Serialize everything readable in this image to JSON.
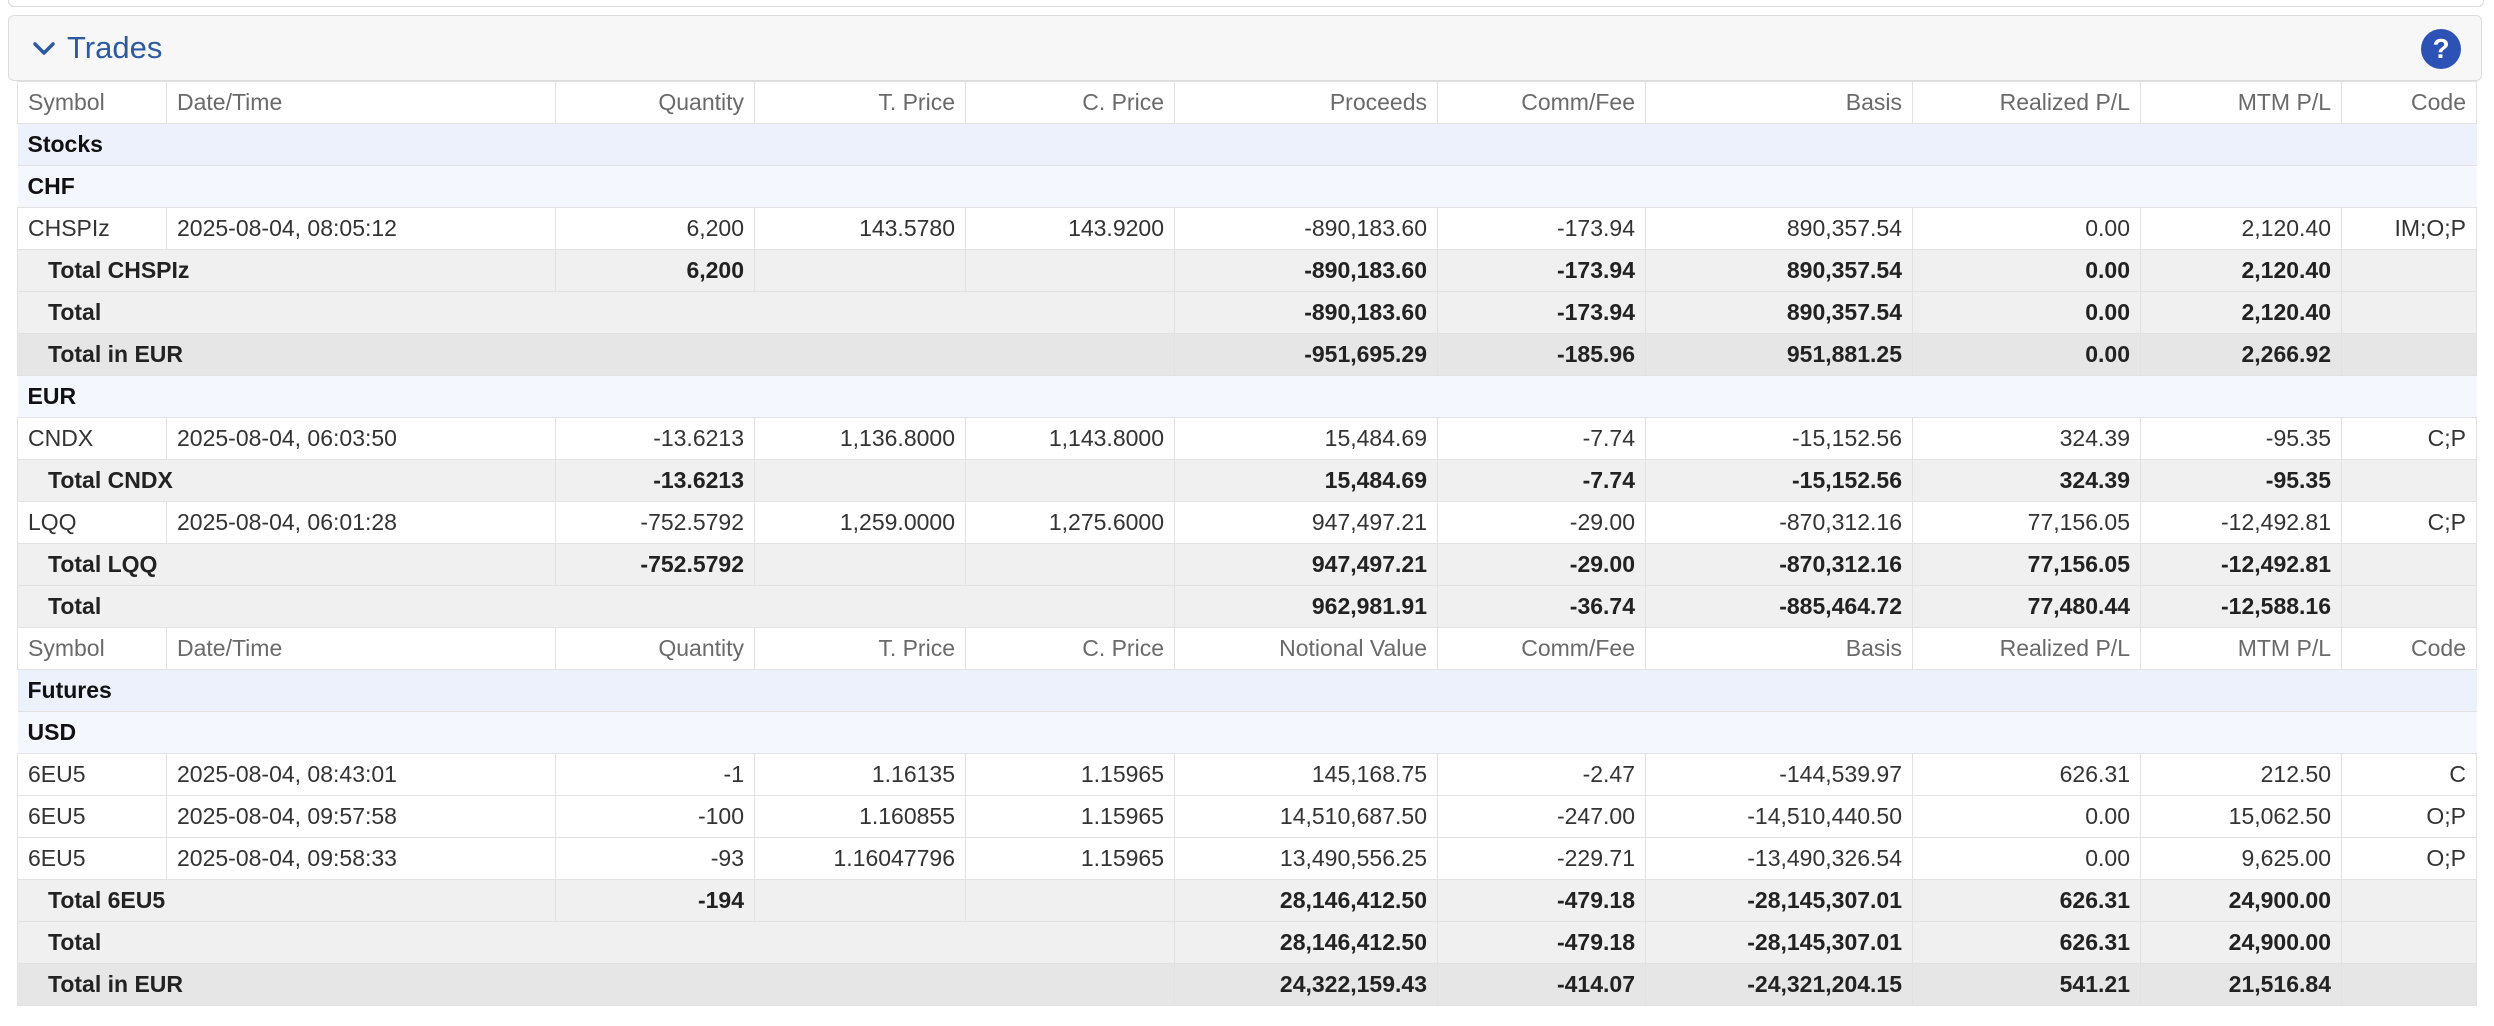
{
  "panel": {
    "title": "Trades",
    "collapse_icon": "chevron-down-icon",
    "help_label": "?",
    "accent": "#2c5aa0"
  },
  "headers": {
    "stocks": [
      "Symbol",
      "Date/Time",
      "Quantity",
      "T. Price",
      "C. Price",
      "Proceeds",
      "Comm/Fee",
      "Basis",
      "Realized P/L",
      "MTM P/L",
      "Code"
    ],
    "futures": [
      "Symbol",
      "Date/Time",
      "Quantity",
      "T. Price",
      "C. Price",
      "Notional Value",
      "Comm/Fee",
      "Basis",
      "Realized P/L",
      "MTM P/L",
      "Code"
    ]
  },
  "stocks": {
    "label": "Stocks",
    "chf": {
      "label": "CHF",
      "rows": [
        {
          "symbol": "CHSPIz",
          "datetime": "2025-08-04, 08:05:12",
          "qty": "6,200",
          "tprice": "143.5780",
          "cprice": "143.9200",
          "proceeds": "-890,183.60",
          "comm": "-173.94",
          "basis": "890,357.54",
          "realized": "0.00",
          "mtm": "2,120.40",
          "code": "IM;O;P"
        }
      ],
      "sym_total": {
        "label": "Total CHSPIz",
        "qty": "6,200",
        "proceeds": "-890,183.60",
        "comm": "-173.94",
        "basis": "890,357.54",
        "realized": "0.00",
        "mtm": "2,120.40"
      },
      "total": {
        "label": "Total",
        "proceeds": "-890,183.60",
        "comm": "-173.94",
        "basis": "890,357.54",
        "realized": "0.00",
        "mtm": "2,120.40"
      },
      "total_eur": {
        "label": "Total in EUR",
        "proceeds": "-951,695.29",
        "comm": "-185.96",
        "basis": "951,881.25",
        "realized": "0.00",
        "mtm": "2,266.92"
      }
    },
    "eur": {
      "label": "EUR",
      "cndx": {
        "symbol": "CNDX",
        "datetime": "2025-08-04, 06:03:50",
        "qty": "-13.6213",
        "tprice": "1,136.8000",
        "cprice": "1,143.8000",
        "proceeds": "15,484.69",
        "comm": "-7.74",
        "basis": "-15,152.56",
        "realized": "324.39",
        "mtm": "-95.35",
        "code": "C;P"
      },
      "cndx_total": {
        "label": "Total CNDX",
        "qty": "-13.6213",
        "proceeds": "15,484.69",
        "comm": "-7.74",
        "basis": "-15,152.56",
        "realized": "324.39",
        "mtm": "-95.35"
      },
      "lqq": {
        "symbol": "LQQ",
        "datetime": "2025-08-04, 06:01:28",
        "qty": "-752.5792",
        "tprice": "1,259.0000",
        "cprice": "1,275.6000",
        "proceeds": "947,497.21",
        "comm": "-29.00",
        "basis": "-870,312.16",
        "realized": "77,156.05",
        "mtm": "-12,492.81",
        "code": "C;P"
      },
      "lqq_total": {
        "label": "Total LQQ",
        "qty": "-752.5792",
        "proceeds": "947,497.21",
        "comm": "-29.00",
        "basis": "-870,312.16",
        "realized": "77,156.05",
        "mtm": "-12,492.81"
      },
      "total": {
        "label": "Total",
        "proceeds": "962,981.91",
        "comm": "-36.74",
        "basis": "-885,464.72",
        "realized": "77,480.44",
        "mtm": "-12,588.16"
      }
    }
  },
  "futures": {
    "label": "Futures",
    "usd": {
      "label": "USD",
      "rows": [
        {
          "symbol": "6EU5",
          "datetime": "2025-08-04, 08:43:01",
          "qty": "-1",
          "tprice": "1.16135",
          "cprice": "1.15965",
          "proceeds": "145,168.75",
          "comm": "-2.47",
          "basis": "-144,539.97",
          "realized": "626.31",
          "mtm": "212.50",
          "code": "C"
        },
        {
          "symbol": "6EU5",
          "datetime": "2025-08-04, 09:57:58",
          "qty": "-100",
          "tprice": "1.160855",
          "cprice": "1.15965",
          "proceeds": "14,510,687.50",
          "comm": "-247.00",
          "basis": "-14,510,440.50",
          "realized": "0.00",
          "mtm": "15,062.50",
          "code": "O;P"
        },
        {
          "symbol": "6EU5",
          "datetime": "2025-08-04, 09:58:33",
          "qty": "-93",
          "tprice": "1.16047796",
          "cprice": "1.15965",
          "proceeds": "13,490,556.25",
          "comm": "-229.71",
          "basis": "-13,490,326.54",
          "realized": "0.00",
          "mtm": "9,625.00",
          "code": "O;P"
        }
      ],
      "sym_total": {
        "label": "Total 6EU5",
        "qty": "-194",
        "proceeds": "28,146,412.50",
        "comm": "-479.18",
        "basis": "-28,145,307.01",
        "realized": "626.31",
        "mtm": "24,900.00"
      },
      "total": {
        "label": "Total",
        "proceeds": "28,146,412.50",
        "comm": "-479.18",
        "basis": "-28,145,307.01",
        "realized": "626.31",
        "mtm": "24,900.00"
      },
      "total_eur": {
        "label": "Total in EUR",
        "proceeds": "24,322,159.43",
        "comm": "-414.07",
        "basis": "-24,321,204.15",
        "realized": "541.21",
        "mtm": "21,516.84"
      }
    }
  }
}
